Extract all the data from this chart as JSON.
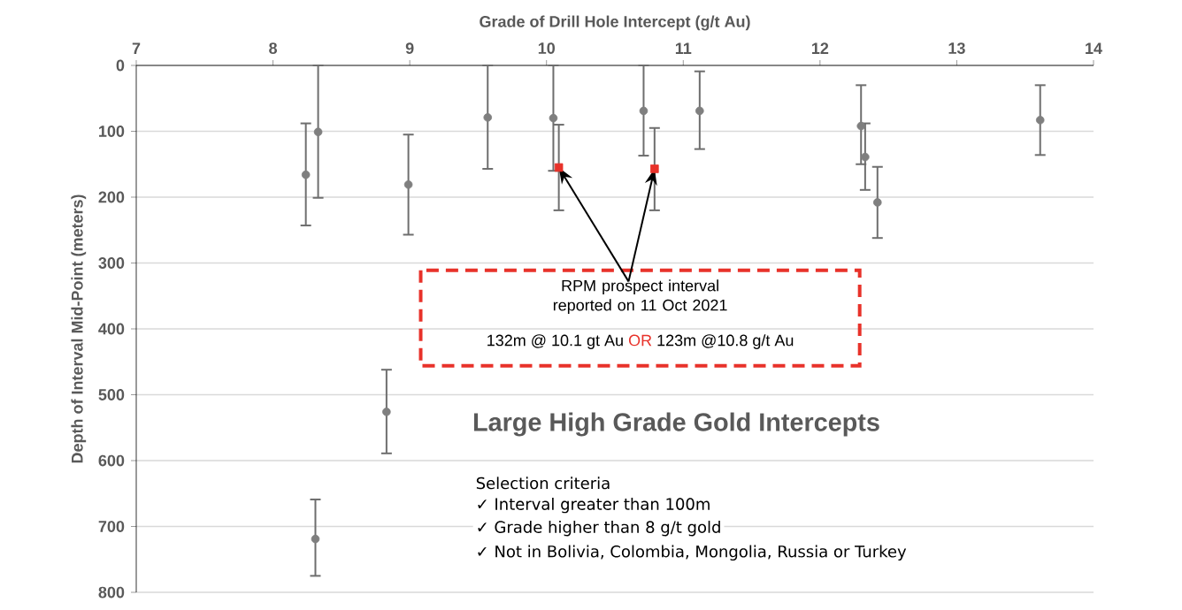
{
  "chart_data": {
    "type": "scatter",
    "title": "Large High Grade Gold Intercepts",
    "xlabel": "Grade of Drill Hole Intercept (g/t Au)",
    "ylabel": "Depth of Interval Mid-Point (meters)",
    "xlim": [
      7,
      14
    ],
    "xticks": [
      7,
      8,
      9,
      10,
      11,
      12,
      13,
      14
    ],
    "ylim": [
      800,
      0
    ],
    "yticks": [
      0,
      100,
      200,
      300,
      400,
      500,
      600,
      700,
      800
    ],
    "grid": "y",
    "series": [
      {
        "color": "#7f7f7f",
        "marker": "circle",
        "x": [
          8.24,
          8.33,
          8.99,
          9.57,
          10.05,
          10.71,
          11.12,
          12.3,
          12.33,
          12.42,
          13.61,
          8.83,
          8.31
        ],
        "values": [
          166,
          101,
          181,
          79,
          80,
          69,
          69,
          92,
          139,
          208,
          83,
          526,
          719
        ],
        "errors": [
          [
            88,
            243
          ],
          [
            0,
            201
          ],
          [
            105,
            257
          ],
          [
            0,
            157
          ],
          [
            0,
            160
          ],
          [
            0,
            137
          ],
          [
            9,
            127
          ],
          [
            30,
            150
          ],
          [
            88,
            189
          ],
          [
            154,
            262
          ],
          [
            30,
            136
          ],
          [
            462,
            589
          ],
          [
            659,
            775
          ]
        ]
      },
      {
        "color": "#e8322a",
        "marker": "square",
        "x": [
          10.09,
          10.79
        ],
        "values": [
          155,
          157
        ],
        "errors": [
          [
            90,
            220
          ],
          [
            95,
            220
          ]
        ]
      }
    ],
    "annotations": [
      {
        "text": "RPM prospect interval reported on 11 Oct 2021",
        "x": 10.09,
        "y": 155
      },
      "132m @ 10.1 gt Au",
      "OR",
      "123m @10.8 g/t Au",
      "Selection criteria",
      "✓ Interval greater than 100m",
      "✓ Grade higher than 8 g/t gold",
      "✓ Not in Bolivia, Colombia, Mongolia, Russia or Turkey"
    ]
  }
}
